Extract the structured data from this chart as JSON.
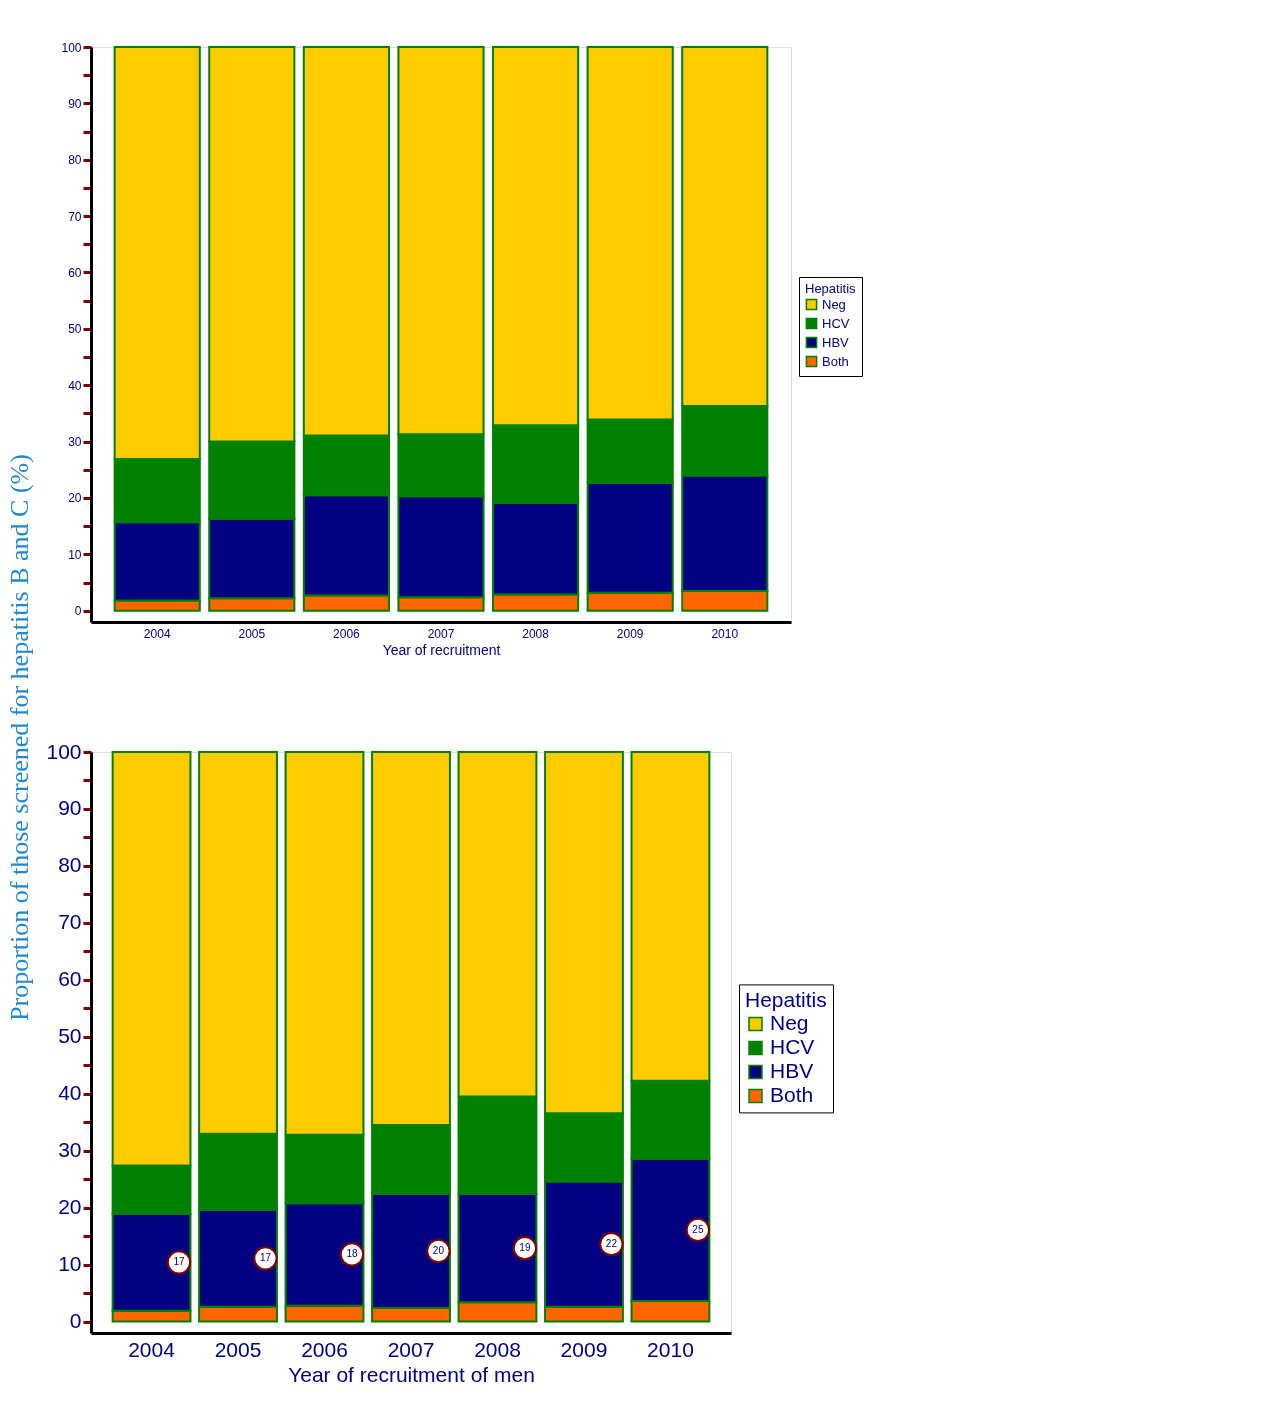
{
  "chart_data": [
    {
      "type": "bar",
      "stacked": true,
      "xlabel": "Year of recruitment",
      "ylabel": "Proportion of those screened for hepatitis B and C (%)",
      "legend_title": "Hepatitis",
      "legend": "right",
      "categories": [
        "2004",
        "2005",
        "2006",
        "2007",
        "2008",
        "2009",
        "2010"
      ],
      "ylim": [
        -2,
        100
      ],
      "yticks": [
        0,
        {
          "value": 5,
          "label": null
        },
        10,
        {
          "value": 15,
          "label": null
        },
        20,
        {
          "value": 25,
          "label": null
        },
        30,
        {
          "value": 35,
          "label": null
        },
        40,
        {
          "value": 45,
          "label": null
        },
        50,
        {
          "value": 55,
          "label": null
        },
        60,
        {
          "value": 65,
          "label": null
        },
        70,
        {
          "value": 75,
          "label": null
        },
        80,
        {
          "value": 85,
          "label": null
        },
        90,
        {
          "value": 95,
          "label": null
        },
        100
      ],
      "series": [
        {
          "name": "Both",
          "color": "#ff6600",
          "values": [
            1.8,
            2.2,
            2.7,
            2.4,
            2.9,
            3.2,
            3.5
          ]
        },
        {
          "name": "HBV",
          "color": "#000080",
          "values": [
            13.9,
            14.1,
            17.8,
            17.9,
            16.2,
            19.5,
            20.5
          ]
        },
        {
          "name": "HCV",
          "color": "#008000",
          "values": [
            11.2,
            13.7,
            10.6,
            11.0,
            13.8,
            11.2,
            12.3
          ]
        },
        {
          "name": "Neg",
          "color": "#ffcc00",
          "values": [
            73.1,
            70.0,
            68.9,
            68.7,
            67.1,
            66.1,
            63.7
          ]
        }
      ]
    },
    {
      "type": "bar",
      "stacked": true,
      "xlabel": "Year of recruitment of men",
      "legend_title": "Hepatitis",
      "legend": "right",
      "categories": [
        "2004",
        "2005",
        "2006",
        "2007",
        "2008",
        "2009",
        "2010"
      ],
      "ylim": [
        -2,
        100
      ],
      "yticks": [
        0,
        {
          "value": 5,
          "label": null
        },
        10,
        {
          "value": 15,
          "label": null
        },
        20,
        {
          "value": 25,
          "label": null
        },
        30,
        {
          "value": 35,
          "label": null
        },
        40,
        {
          "value": 45,
          "label": null
        },
        50,
        {
          "value": 55,
          "label": null
        },
        60,
        {
          "value": 65,
          "label": null
        },
        70,
        {
          "value": 75,
          "label": null
        },
        80,
        {
          "value": 85,
          "label": null
        },
        90,
        {
          "value": 95,
          "label": null
        },
        100
      ],
      "series": [
        {
          "name": "Both",
          "color": "#ff6600",
          "values": [
            1.9,
            2.6,
            2.8,
            2.4,
            3.4,
            2.6,
            3.6
          ]
        },
        {
          "name": "HBV",
          "color": "#000080",
          "values": [
            17,
            17,
            18,
            20,
            19,
            22,
            25
          ],
          "value_labels": [
            "17",
            "17",
            "18",
            "20",
            "19",
            "22",
            "25"
          ]
        },
        {
          "name": "HCV",
          "color": "#008000",
          "values": [
            8.5,
            13.4,
            12.0,
            12.1,
            17.1,
            12.0,
            13.7
          ]
        },
        {
          "name": "Neg",
          "color": "#ffcc00",
          "values": [
            72.6,
            67.0,
            67.2,
            65.5,
            60.5,
            63.4,
            57.7
          ]
        }
      ]
    }
  ]
}
